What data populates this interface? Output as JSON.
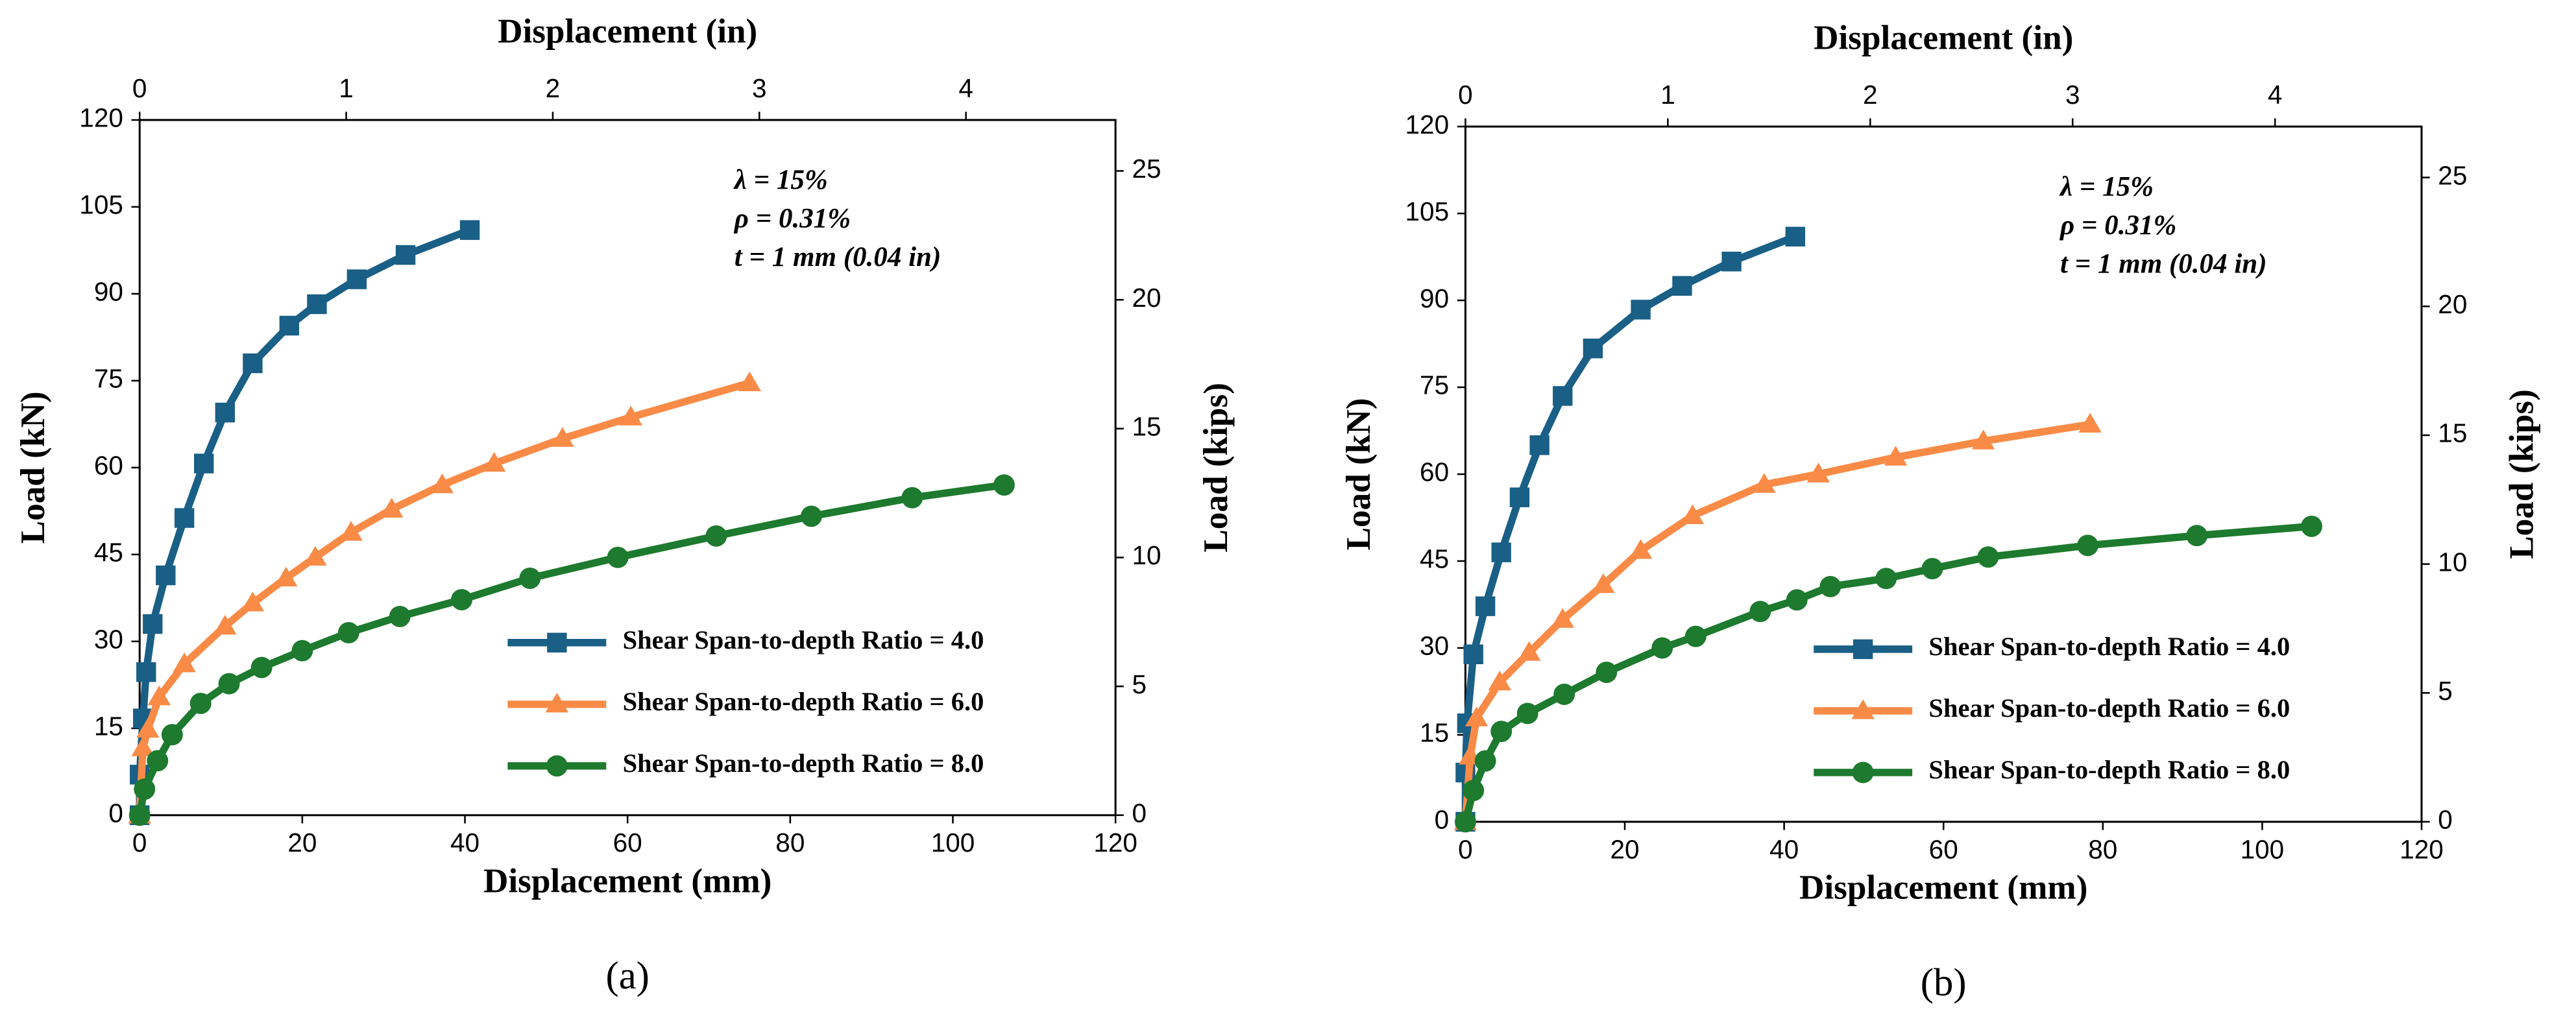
{
  "chart_data": [
    {
      "type": "line",
      "label": "(a)",
      "xlabel": "Displacement (mm)",
      "x2label": "Displacement (in)",
      "ylabel": "Load (kN)",
      "y2label": "Load (kips)",
      "annotations": [
        "λ = 15%",
        "ρ = 0.31%",
        "t = 1 mm (0.04 in)"
      ],
      "xlim": [
        0,
        120
      ],
      "xticks": [
        0,
        20,
        40,
        60,
        80,
        100,
        120
      ],
      "x2lim": [
        0,
        4.724
      ],
      "x2ticks": [
        0,
        1,
        2,
        3,
        4
      ],
      "ylim": [
        0,
        120
      ],
      "yticks": [
        0,
        15,
        30,
        45,
        60,
        75,
        90,
        105,
        120
      ],
      "y2lim": [
        0,
        26.977
      ],
      "y2ticks": [
        0,
        5,
        10,
        15,
        20,
        25
      ],
      "legend": "lower right",
      "series": [
        {
          "name": "Shear Span-to-depth Ratio = 4.0",
          "color": "#1a5f86",
          "marker": "square",
          "x": [
            0,
            0,
            0.4,
            0.8,
            1.6,
            3.2,
            5.5,
            7.9,
            10.5,
            13.9,
            18.4,
            21.8,
            26.7,
            32.7,
            40.6
          ],
          "values": [
            0,
            7,
            16.7,
            24.7,
            33,
            41.4,
            51.3,
            60.7,
            69.5,
            78,
            84.5,
            88.2,
            92.5,
            96.7,
            101
          ]
        },
        {
          "name": "Shear Span-to-depth Ratio = 6.0",
          "color": "#f98b47",
          "marker": "triangle",
          "x": [
            0,
            0.4,
            1,
            2.4,
            5.5,
            10.5,
            13.9,
            18,
            21.6,
            26,
            31,
            37.2,
            43.6,
            52,
            60.4,
            75
          ],
          "values": [
            0,
            11.6,
            14.8,
            20.4,
            26.1,
            32.6,
            36.6,
            40.9,
            44.5,
            48.8,
            52.8,
            57,
            60.7,
            65,
            68.7,
            74.6
          ]
        },
        {
          "name": "Shear Span-to-depth Ratio = 8.0",
          "color": "#1d7a2e",
          "marker": "circle",
          "x": [
            0,
            0.6,
            2.2,
            4,
            7.5,
            11,
            15,
            20,
            25.7,
            32,
            39.6,
            48,
            58.8,
            70.9,
            82.6,
            95,
            106.3
          ],
          "values": [
            0,
            4.5,
            9.4,
            13.9,
            19.3,
            22.7,
            25.5,
            28.4,
            31.5,
            34.3,
            37.2,
            40.9,
            44.5,
            48.2,
            51.6,
            54.8,
            57
          ]
        }
      ]
    },
    {
      "type": "line",
      "label": "(b)",
      "xlabel": "Displacement (mm)",
      "x2label": "Displacement (in)",
      "ylabel": "Load (kN)",
      "y2label": "Load (kips)",
      "annotations": [
        "λ = 15%",
        "ρ = 0.31%",
        "t = 1 mm (0.04 in)"
      ],
      "xlim": [
        0,
        120
      ],
      "xticks": [
        0,
        20,
        40,
        60,
        80,
        100,
        120
      ],
      "x2lim": [
        0,
        4.724
      ],
      "x2ticks": [
        0,
        1,
        2,
        3,
        4
      ],
      "ylim": [
        0,
        120
      ],
      "yticks": [
        0,
        15,
        30,
        45,
        60,
        75,
        90,
        105,
        120
      ],
      "y2lim": [
        0,
        26.977
      ],
      "y2ticks": [
        0,
        5,
        10,
        15,
        20,
        25
      ],
      "legend": "lower right",
      "series": [
        {
          "name": "Shear Span-to-depth Ratio = 4.0",
          "color": "#1a5f86",
          "marker": "square",
          "x": [
            0,
            0,
            0.2,
            1,
            2.5,
            4.5,
            6.8,
            9.3,
            12.2,
            16,
            22,
            27.2,
            33.4,
            41.4
          ],
          "values": [
            0,
            8.5,
            17,
            28.9,
            37.2,
            46.5,
            56,
            65,
            73.5,
            81.7,
            88.4,
            92.5,
            96.7,
            101
          ]
        },
        {
          "name": "Shear Span-to-depth Ratio = 6.0",
          "color": "#f98b47",
          "marker": "triangle",
          "x": [
            0,
            0.6,
            1.4,
            4.3,
            8,
            12.2,
            17.3,
            22,
            28.5,
            37.5,
            44.3,
            54,
            65,
            78.4
          ],
          "values": [
            0,
            11.3,
            17.9,
            24.1,
            29.2,
            34.9,
            40.9,
            46.8,
            52.8,
            58.2,
            60,
            62.9,
            65.7,
            68.6
          ]
        },
        {
          "name": "Shear Span-to-depth Ratio = 8.0",
          "color": "#1d7a2e",
          "marker": "circle",
          "x": [
            0,
            1,
            2.5,
            4.5,
            7.8,
            12.4,
            17.7,
            24.7,
            28.9,
            37,
            41.6,
            45.8,
            52.8,
            58.6,
            65.6,
            78.1,
            91.8,
            106.2
          ],
          "values": [
            0,
            5.4,
            10.5,
            15.6,
            18.7,
            22,
            25.8,
            30,
            32,
            36.3,
            38.3,
            40.6,
            42,
            43.7,
            45.7,
            47.7,
            49.4,
            51
          ]
        }
      ]
    }
  ]
}
